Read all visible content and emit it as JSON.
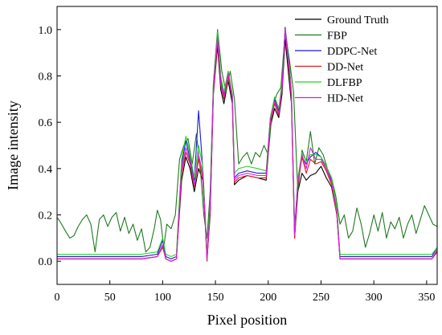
{
  "chart_data": {
    "type": "line",
    "title": "",
    "xlabel": "Pixel position",
    "ylabel": "Image intensity",
    "xlim": [
      0,
      360
    ],
    "ylim": [
      -0.1,
      1.1
    ],
    "xticks": [
      0,
      50,
      100,
      150,
      200,
      250,
      300,
      350
    ],
    "yticks": [
      0.0,
      0.2,
      0.4,
      0.6,
      0.8,
      1.0
    ],
    "xtick_labels": [
      "0",
      "50",
      "100",
      "150",
      "200",
      "250",
      "300",
      "350"
    ],
    "ytick_labels": [
      "0.0",
      "0.2",
      "0.4",
      "0.6",
      "0.8",
      "1.0"
    ],
    "grid": false,
    "legend_position": "top-right",
    "series": [
      {
        "name": "Ground Truth",
        "color": "#000000",
        "x": [
          0,
          20,
          40,
          60,
          80,
          95,
          100,
          103,
          108,
          113,
          118,
          122,
          126,
          130,
          134,
          138,
          140,
          142,
          145,
          148,
          152,
          155,
          158,
          162,
          166,
          168,
          172,
          180,
          190,
          198,
          202,
          206,
          210,
          213,
          216,
          220,
          222,
          225,
          228,
          232,
          236,
          240,
          245,
          250,
          255,
          260,
          265,
          268,
          272,
          280,
          300,
          320,
          340,
          355,
          360
        ],
        "y": [
          0.01,
          0.01,
          0.01,
          0.01,
          0.01,
          0.02,
          0.07,
          0.01,
          0.0,
          0.01,
          0.35,
          0.45,
          0.4,
          0.3,
          0.4,
          0.35,
          0.2,
          0.01,
          0.2,
          0.72,
          0.93,
          0.74,
          0.68,
          0.78,
          0.68,
          0.33,
          0.35,
          0.37,
          0.36,
          0.35,
          0.58,
          0.66,
          0.62,
          0.72,
          0.96,
          0.77,
          0.68,
          0.1,
          0.3,
          0.38,
          0.35,
          0.37,
          0.38,
          0.41,
          0.36,
          0.32,
          0.2,
          0.01,
          0.01,
          0.01,
          0.01,
          0.01,
          0.01,
          0.01,
          0.04
        ]
      },
      {
        "name": "FBP",
        "color": "#1f7a1f",
        "x": [
          0,
          3,
          8,
          12,
          16,
          20,
          24,
          28,
          32,
          36,
          40,
          44,
          48,
          52,
          56,
          60,
          64,
          68,
          72,
          76,
          80,
          84,
          88,
          92,
          95,
          98,
          101,
          104,
          108,
          112,
          116,
          120,
          124,
          128,
          132,
          136,
          139,
          142,
          145,
          148,
          152,
          156,
          160,
          164,
          168,
          172,
          176,
          180,
          184,
          188,
          192,
          196,
          200,
          204,
          208,
          212,
          216,
          220,
          224,
          228,
          232,
          236,
          240,
          244,
          248,
          252,
          256,
          260,
          264,
          268,
          272,
          276,
          280,
          284,
          288,
          292,
          296,
          300,
          304,
          308,
          312,
          316,
          320,
          324,
          328,
          332,
          336,
          340,
          344,
          348,
          352,
          356,
          360
        ],
        "y": [
          0.19,
          0.17,
          0.13,
          0.1,
          0.11,
          0.15,
          0.18,
          0.2,
          0.16,
          0.04,
          0.18,
          0.2,
          0.15,
          0.19,
          0.21,
          0.13,
          0.19,
          0.12,
          0.16,
          0.09,
          0.14,
          0.04,
          0.06,
          0.14,
          0.22,
          0.18,
          0.06,
          0.16,
          0.14,
          0.2,
          0.44,
          0.5,
          0.53,
          0.42,
          0.55,
          0.38,
          0.2,
          0.1,
          0.3,
          0.77,
          1.0,
          0.82,
          0.73,
          0.82,
          0.7,
          0.42,
          0.45,
          0.47,
          0.42,
          0.47,
          0.45,
          0.5,
          0.46,
          0.66,
          0.72,
          0.75,
          0.99,
          0.87,
          0.73,
          0.3,
          0.48,
          0.43,
          0.56,
          0.42,
          0.49,
          0.46,
          0.4,
          0.36,
          0.28,
          0.16,
          0.2,
          0.1,
          0.13,
          0.23,
          0.16,
          0.06,
          0.12,
          0.2,
          0.13,
          0.21,
          0.1,
          0.17,
          0.14,
          0.19,
          0.1,
          0.16,
          0.2,
          0.12,
          0.18,
          0.24,
          0.2,
          0.16,
          0.15
        ]
      },
      {
        "name": "DDPC-Net",
        "color": "#1a1adc",
        "x": [
          0,
          20,
          40,
          60,
          80,
          95,
          100,
          103,
          108,
          113,
          118,
          122,
          126,
          130,
          134,
          138,
          140,
          142,
          145,
          148,
          152,
          155,
          158,
          162,
          166,
          168,
          172,
          180,
          190,
          198,
          202,
          206,
          210,
          213,
          216,
          220,
          222,
          225,
          228,
          232,
          236,
          240,
          245,
          250,
          255,
          260,
          265,
          268,
          272,
          280,
          300,
          320,
          340,
          355,
          360
        ],
        "y": [
          0.02,
          0.02,
          0.02,
          0.02,
          0.02,
          0.03,
          0.09,
          0.02,
          0.01,
          0.02,
          0.42,
          0.52,
          0.44,
          0.35,
          0.65,
          0.4,
          0.22,
          0.02,
          0.25,
          0.75,
          0.98,
          0.79,
          0.72,
          0.82,
          0.72,
          0.36,
          0.38,
          0.39,
          0.38,
          0.38,
          0.62,
          0.7,
          0.65,
          0.76,
          1.01,
          0.85,
          0.72,
          0.14,
          0.35,
          0.45,
          0.42,
          0.45,
          0.47,
          0.45,
          0.4,
          0.35,
          0.22,
          0.02,
          0.02,
          0.02,
          0.02,
          0.02,
          0.02,
          0.02,
          0.06
        ]
      },
      {
        "name": "DD-Net",
        "color": "#e01a1a",
        "x": [
          0,
          20,
          40,
          60,
          80,
          95,
          100,
          103,
          108,
          113,
          118,
          122,
          126,
          130,
          134,
          138,
          140,
          142,
          145,
          148,
          152,
          155,
          158,
          162,
          166,
          168,
          172,
          180,
          190,
          198,
          202,
          206,
          210,
          213,
          216,
          220,
          222,
          225,
          228,
          232,
          236,
          240,
          245,
          250,
          255,
          260,
          265,
          268,
          272,
          280,
          300,
          320,
          340,
          355,
          360
        ],
        "y": [
          0.01,
          0.01,
          0.01,
          0.01,
          0.01,
          0.02,
          0.06,
          0.01,
          0.0,
          0.01,
          0.38,
          0.47,
          0.42,
          0.32,
          0.44,
          0.36,
          0.2,
          0.0,
          0.22,
          0.73,
          0.95,
          0.76,
          0.7,
          0.8,
          0.7,
          0.34,
          0.36,
          0.37,
          0.36,
          0.36,
          0.6,
          0.68,
          0.63,
          0.74,
          1.0,
          0.8,
          0.7,
          0.1,
          0.33,
          0.45,
          0.38,
          0.44,
          0.42,
          0.43,
          0.39,
          0.33,
          0.2,
          0.01,
          0.01,
          0.01,
          0.01,
          0.01,
          0.01,
          0.01,
          0.04
        ]
      },
      {
        "name": "DLFBP",
        "color": "#22d822",
        "x": [
          0,
          20,
          40,
          60,
          80,
          95,
          100,
          103,
          108,
          113,
          118,
          122,
          126,
          130,
          134,
          138,
          140,
          142,
          145,
          148,
          152,
          155,
          158,
          162,
          166,
          168,
          172,
          180,
          190,
          198,
          202,
          206,
          210,
          213,
          216,
          220,
          222,
          225,
          228,
          232,
          236,
          240,
          245,
          250,
          255,
          260,
          265,
          268,
          272,
          280,
          300,
          320,
          340,
          355,
          360
        ],
        "y": [
          0.03,
          0.03,
          0.03,
          0.03,
          0.03,
          0.04,
          0.1,
          0.03,
          0.02,
          0.03,
          0.44,
          0.54,
          0.46,
          0.36,
          0.5,
          0.41,
          0.23,
          0.03,
          0.26,
          0.76,
          0.99,
          0.8,
          0.73,
          0.82,
          0.72,
          0.38,
          0.4,
          0.41,
          0.4,
          0.39,
          0.62,
          0.71,
          0.66,
          0.77,
          1.0,
          0.84,
          0.73,
          0.12,
          0.36,
          0.47,
          0.43,
          0.46,
          0.46,
          0.45,
          0.41,
          0.36,
          0.23,
          0.03,
          0.03,
          0.03,
          0.03,
          0.03,
          0.03,
          0.03,
          0.06
        ]
      },
      {
        "name": "HD-Net",
        "color": "#e01ae0",
        "x": [
          0,
          20,
          40,
          60,
          80,
          95,
          100,
          103,
          108,
          113,
          118,
          122,
          126,
          130,
          134,
          138,
          140,
          142,
          145,
          148,
          152,
          155,
          158,
          162,
          166,
          168,
          172,
          180,
          190,
          198,
          202,
          206,
          210,
          213,
          216,
          220,
          222,
          225,
          228,
          232,
          236,
          240,
          245,
          250,
          255,
          260,
          265,
          268,
          272,
          280,
          300,
          320,
          340,
          355,
          360
        ],
        "y": [
          0.01,
          0.01,
          0.01,
          0.01,
          0.01,
          0.02,
          0.07,
          0.01,
          0.0,
          0.01,
          0.4,
          0.49,
          0.43,
          0.33,
          0.46,
          0.38,
          0.21,
          0.01,
          0.23,
          0.74,
          0.97,
          0.77,
          0.71,
          0.81,
          0.71,
          0.35,
          0.37,
          0.38,
          0.37,
          0.37,
          0.61,
          0.69,
          0.64,
          0.75,
          1.0,
          0.82,
          0.71,
          0.11,
          0.34,
          0.46,
          0.4,
          0.49,
          0.44,
          0.44,
          0.4,
          0.34,
          0.21,
          0.01,
          0.01,
          0.01,
          0.01,
          0.01,
          0.01,
          0.01,
          0.05
        ]
      }
    ]
  }
}
